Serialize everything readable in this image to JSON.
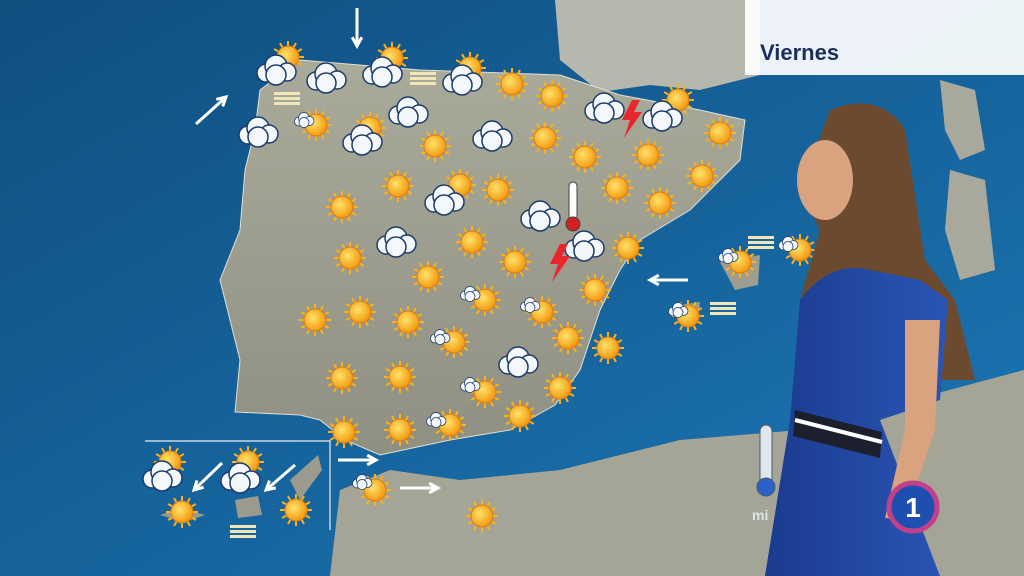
{
  "header": {
    "day": "Viernes"
  },
  "channel": {
    "logo": "1"
  },
  "thermometer": {
    "label": "mi"
  }
}
